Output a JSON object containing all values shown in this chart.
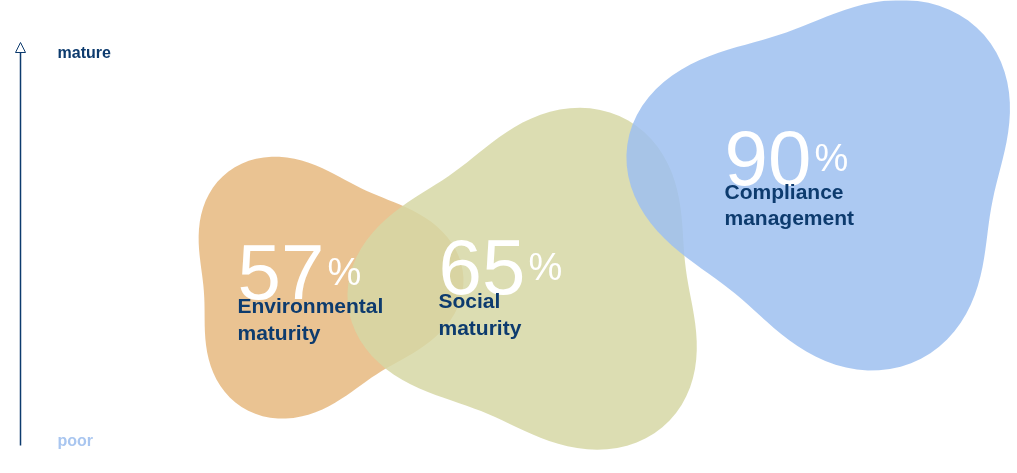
{
  "chart_data": {
    "type": "other",
    "categories": [
      "Environmental maturity",
      "Social maturity",
      "Compliance management"
    ],
    "values": [
      57,
      65,
      90
    ],
    "value_labels": [
      "57%",
      "65%",
      "90%"
    ],
    "colors": [
      "#e6b97f",
      "#d6d7a5",
      "#9ec0f0"
    ],
    "annotations": [
      "mature",
      "poor"
    ]
  }
}
